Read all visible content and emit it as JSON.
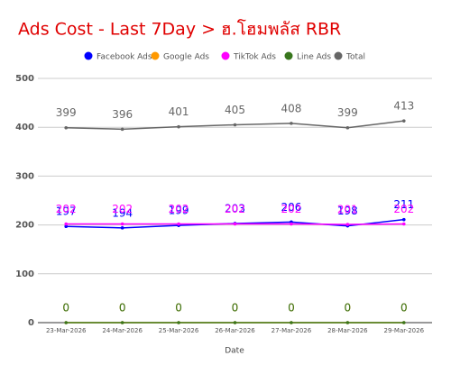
{
  "chart_data": {
    "type": "line",
    "title": "Ads Cost - Last 7Day > ฮ.โฮมพลัส RBR",
    "x_label": "Date",
    "categories": [
      "23-Mar-2026",
      "24-Mar-2026",
      "25-Mar-2026",
      "26-Mar-2026",
      "27-Mar-2026",
      "28-Mar-2026",
      "29-Mar-2026"
    ],
    "series": [
      {
        "name": "Facebook Ads",
        "color": "#0000ff",
        "values": [
          197,
          194,
          199,
          203,
          206,
          198,
          211
        ]
      },
      {
        "name": "Google Ads",
        "color": "#ff9900",
        "values": [
          0,
          0,
          0,
          0,
          0,
          0,
          0
        ]
      },
      {
        "name": "TikTok Ads",
        "color": "#ff00ff",
        "values": [
          202,
          202,
          202,
          202,
          202,
          201,
          202
        ]
      },
      {
        "name": "Line Ads",
        "color": "#38761d",
        "values": [
          0,
          0,
          0,
          0,
          0,
          0,
          0
        ]
      },
      {
        "name": "Total",
        "color": "#666666",
        "values": [
          399,
          396,
          401,
          405,
          408,
          399,
          413
        ]
      }
    ],
    "ylim": [
      0,
      500
    ],
    "yticks": [
      0,
      100,
      200,
      300,
      400,
      500
    ],
    "grid": true,
    "legend": "top",
    "data_labels": true
  }
}
